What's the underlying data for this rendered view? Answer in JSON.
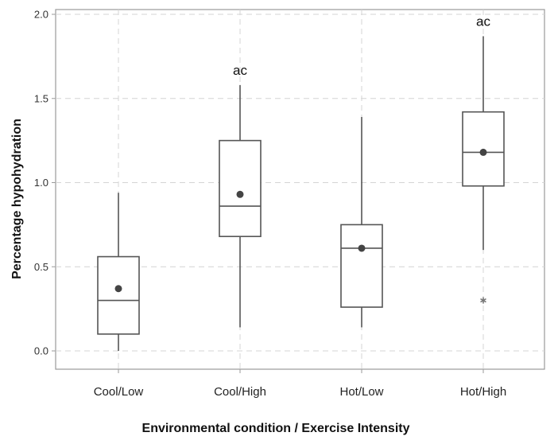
{
  "chart_data": {
    "type": "boxplot",
    "title": "",
    "xlabel": "Environmental condition / Exercise Intensity",
    "ylabel": "Percentage hypohydration",
    "ylim": [
      -0.1,
      2.0
    ],
    "yticks": [
      0.0,
      0.5,
      1.0,
      1.5,
      2.0
    ],
    "ytick_labels": [
      "0.0",
      "0.5",
      "1.0",
      "1.5",
      "2.0"
    ],
    "grid": true,
    "categories": [
      "Cool/Low",
      "Cool/High",
      "Hot/Low",
      "Hot/High"
    ],
    "boxes": [
      {
        "category": "Cool/Low",
        "whisker_low": 0.0,
        "q1": 0.1,
        "median": 0.3,
        "q3": 0.56,
        "whisker_high": 0.94,
        "mean": 0.37,
        "outliers": [],
        "annotation": ""
      },
      {
        "category": "Cool/High",
        "whisker_low": 0.14,
        "q1": 0.68,
        "median": 0.86,
        "q3": 1.25,
        "whisker_high": 1.58,
        "mean": 0.93,
        "outliers": [],
        "annotation": "ac"
      },
      {
        "category": "Hot/Low",
        "whisker_low": 0.14,
        "q1": 0.26,
        "median": 0.61,
        "q3": 0.75,
        "whisker_high": 1.39,
        "mean": 0.61,
        "outliers": [],
        "annotation": ""
      },
      {
        "category": "Hot/High",
        "whisker_low": 0.6,
        "q1": 0.98,
        "median": 1.18,
        "q3": 1.42,
        "whisker_high": 1.87,
        "mean": 1.18,
        "outliers": [
          0.3
        ],
        "annotation": "ac"
      }
    ],
    "colors": {
      "frame": "#9a9a9a",
      "grid": "#d4d4d4",
      "box": "#555555",
      "mean": "#444444",
      "outlier": "#777777"
    }
  }
}
